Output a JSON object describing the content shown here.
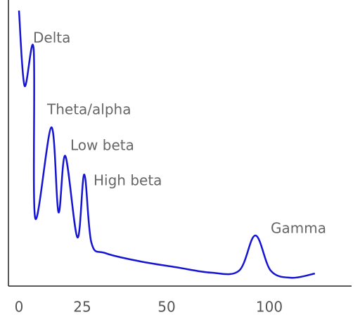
{
  "chart_data": {
    "type": "line",
    "x": [
      0,
      2.2,
      5.8,
      6.4,
      12.8,
      15.6,
      18.3,
      23.1,
      25.6,
      27.7,
      31.9,
      42.3,
      54.5,
      71.6,
      85.3,
      93.2,
      100.7,
      110.9,
      122.2
    ],
    "series": [
      {
        "color": "#1414d2",
        "values": [
          96.3,
          70,
          82.8,
          23.8,
          55.5,
          25.8,
          45.5,
          17,
          39,
          15.2,
          11.5,
          8.6,
          6.6,
          4.7,
          5.4,
          17.7,
          5.4,
          2.9,
          4.4
        ]
      }
    ],
    "xlim": [
      -4.2,
      140
    ],
    "xticks": [
      0,
      25,
      50,
      100
    ],
    "ylim": [
      0,
      100
    ],
    "annotations": [
      "Delta",
      "Theta/alpha",
      "Low beta",
      "High beta",
      "Gamma"
    ]
  }
}
